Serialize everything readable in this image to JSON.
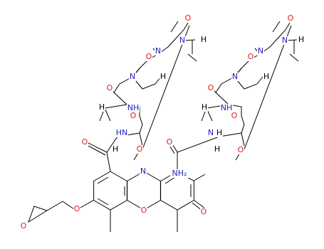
{
  "atoms": [
    "O",
    "N",
    "H",
    "N",
    "O",
    "N",
    "H",
    "O",
    "NH",
    "H",
    "O",
    "HN",
    "O",
    "H",
    "O",
    "N",
    "H",
    "N",
    "O",
    "N",
    "H",
    "O",
    "NH",
    "H",
    "O",
    "N",
    "H",
    "O",
    "H",
    "O",
    "O",
    "N",
    "NH₂",
    "O",
    "O",
    "O",
    "O"
  ]
}
